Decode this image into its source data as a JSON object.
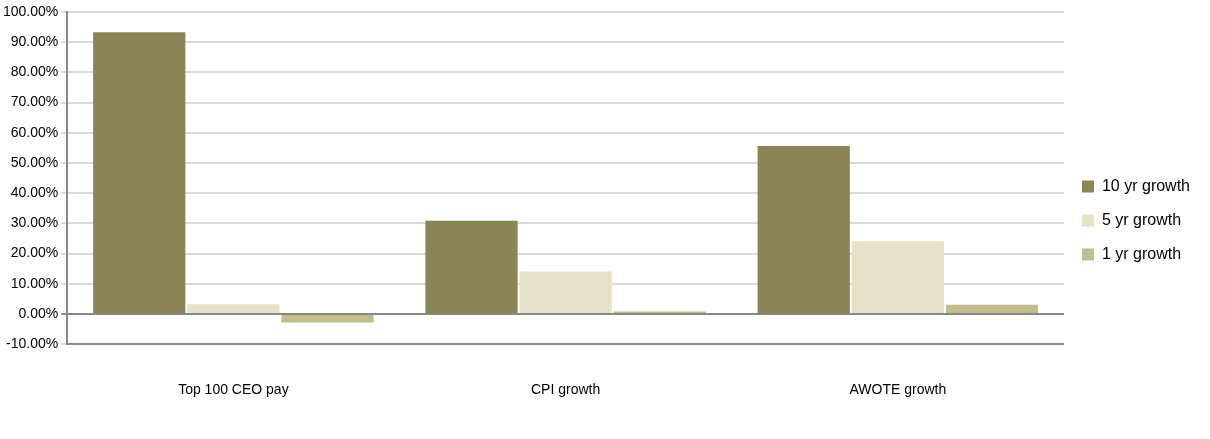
{
  "chart_data": {
    "type": "bar",
    "categories": [
      "Top 100 CEO pay",
      "CPI growth",
      "AWOTE growth"
    ],
    "series": [
      {
        "name": "10 yr growth",
        "color": "#8b8456",
        "values": [
          93.3,
          30.9,
          55.6
        ]
      },
      {
        "name": "5 yr growth",
        "color": "#e6e2c8",
        "values": [
          3.2,
          14.1,
          24.1
        ]
      },
      {
        "name": "1 yr growth",
        "color": "#c4bc8e",
        "values": [
          -2.8,
          0.8,
          3.1
        ]
      }
    ],
    "ylim": [
      -10,
      100
    ],
    "yticks": [
      {
        "value": -10,
        "label": "-10.00%"
      },
      {
        "value": 0,
        "label": "0.00%"
      },
      {
        "value": 10,
        "label": "10.00%"
      },
      {
        "value": 20,
        "label": "20.00%"
      },
      {
        "value": 30,
        "label": "30.00%"
      },
      {
        "value": 40,
        "label": "40.00%"
      },
      {
        "value": 50,
        "label": "50.00%"
      },
      {
        "value": 60,
        "label": "60.00%"
      },
      {
        "value": 70,
        "label": "70.00%"
      },
      {
        "value": 80,
        "label": "80.00%"
      },
      {
        "value": 90,
        "label": "90.00%"
      },
      {
        "value": 100,
        "label": "100.00%"
      }
    ],
    "grid": "y",
    "legend": "right"
  }
}
